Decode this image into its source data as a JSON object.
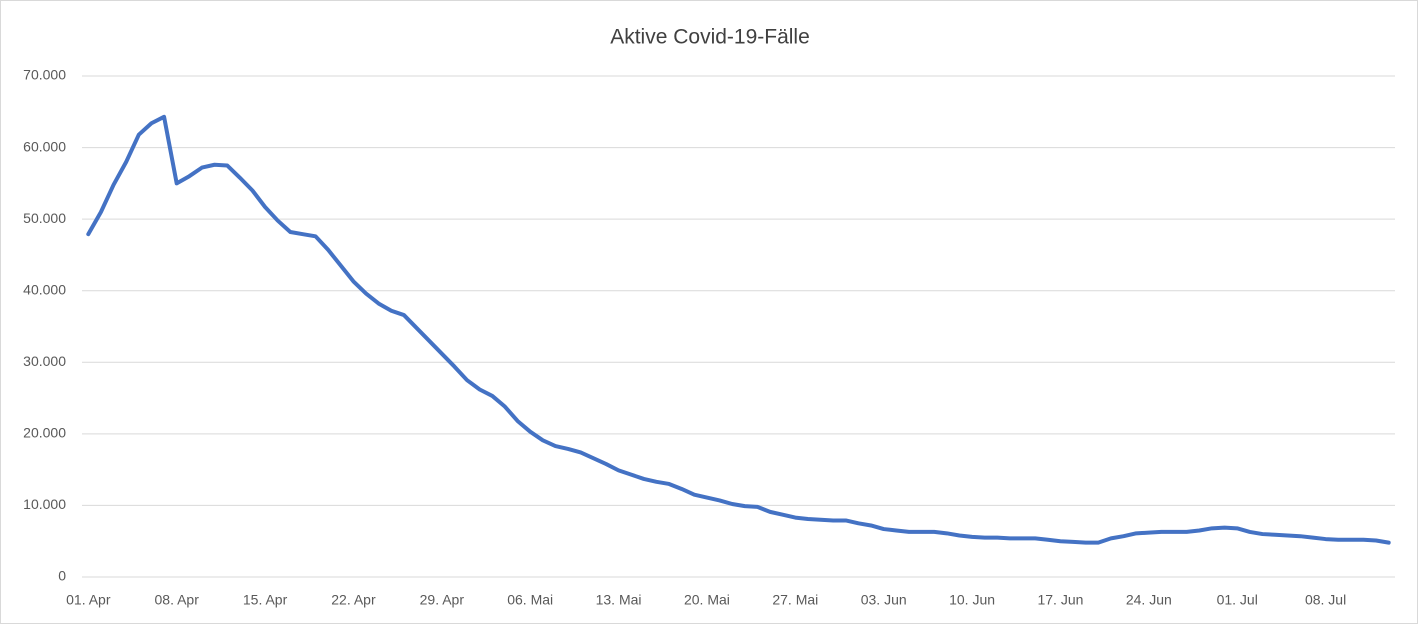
{
  "chart_data": {
    "type": "line",
    "title": "Aktive Covid-19-Fälle",
    "categories": [
      "01. Apr",
      null,
      null,
      null,
      null,
      null,
      null,
      "08. Apr",
      null,
      null,
      null,
      null,
      null,
      null,
      "15. Apr",
      null,
      null,
      null,
      null,
      null,
      null,
      "22. Apr",
      null,
      null,
      null,
      null,
      null,
      null,
      "29. Apr",
      null,
      null,
      null,
      null,
      null,
      null,
      "06. Mai",
      null,
      null,
      null,
      null,
      null,
      null,
      "13. Mai",
      null,
      null,
      null,
      null,
      null,
      null,
      "20. Mai",
      null,
      null,
      null,
      null,
      null,
      null,
      "27. Mai",
      null,
      null,
      null,
      null,
      null,
      null,
      "03. Jun",
      null,
      null,
      null,
      null,
      null,
      null,
      "10. Jun",
      null,
      null,
      null,
      null,
      null,
      null,
      "17. Jun",
      null,
      null,
      null,
      null,
      null,
      null,
      "24. Jun",
      null,
      null,
      null,
      null,
      null,
      null,
      "01. Jul",
      null,
      null,
      null,
      null,
      null,
      null,
      "08. Jul",
      null,
      null,
      null,
      null,
      null
    ],
    "values": [
      47900,
      51000,
      54800,
      58000,
      61800,
      63400,
      64300,
      55000,
      56000,
      57200,
      57600,
      57500,
      55800,
      54000,
      51700,
      49800,
      48200,
      47900,
      47600,
      45700,
      43500,
      41300,
      39600,
      38200,
      37200,
      36600,
      34800,
      33000,
      31200,
      29400,
      27500,
      26200,
      25300,
      23800,
      21800,
      20300,
      19100,
      18300,
      17900,
      17400,
      16600,
      15800,
      14900,
      14300,
      13700,
      13300,
      13000,
      12300,
      11500,
      11100,
      10700,
      10200,
      9900,
      9800,
      9100,
      8700,
      8300,
      8100,
      8000,
      7900,
      7900,
      7500,
      7200,
      6700,
      6500,
      6300,
      6300,
      6300,
      6100,
      5800,
      5600,
      5500,
      5500,
      5400,
      5400,
      5400,
      5200,
      5000,
      4900,
      4800,
      4800,
      5400,
      5700,
      6100,
      6200,
      6300,
      6300,
      6300,
      6500,
      6800,
      6900,
      6800,
      6300,
      6000,
      5900,
      5800,
      5700,
      5500,
      5300,
      5200,
      5200,
      5200,
      5100,
      4800
    ],
    "color": "#4472c4",
    "ylim": [
      0,
      70000
    ],
    "yticks": [
      0,
      {
        "value": 10000,
        "label": "10.000"
      },
      {
        "value": 20000,
        "label": "20.000"
      },
      {
        "value": 30000,
        "label": "30.000"
      },
      {
        "value": 40000,
        "label": "40.000"
      },
      {
        "value": 50000,
        "label": "50.000"
      },
      {
        "value": 60000,
        "label": "60.000"
      },
      {
        "value": 70000,
        "label": "70.000"
      }
    ],
    "grid": true
  }
}
